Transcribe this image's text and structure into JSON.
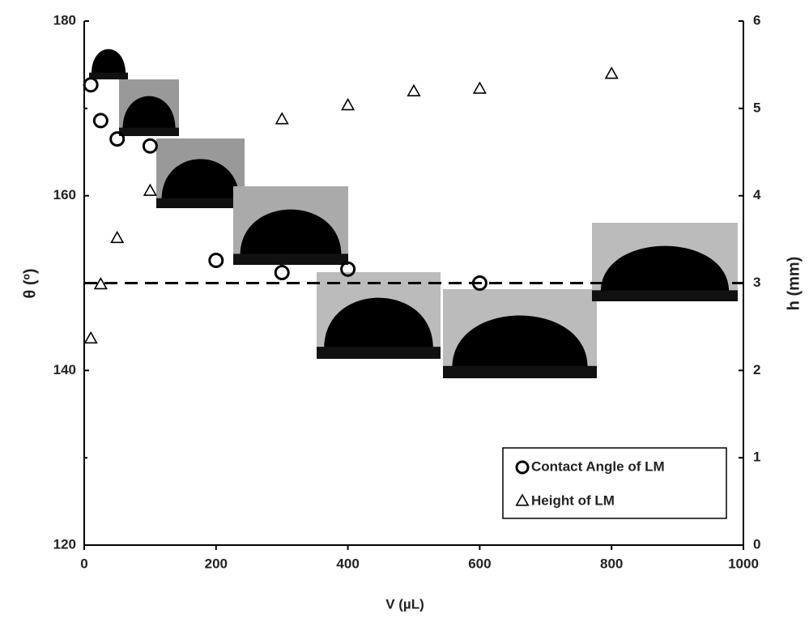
{
  "chart_data": {
    "type": "scatter",
    "x_label": "V (µL)",
    "y_label": "θ (º)",
    "y2_label": "h (mm)",
    "xlim": [
      0,
      1000
    ],
    "xticks": [
      0,
      200,
      400,
      600,
      800,
      1000
    ],
    "ylim": [
      120,
      180
    ],
    "yticks": [
      120,
      140,
      160,
      180
    ],
    "y_minor_ticks": [
      130,
      150,
      170
    ],
    "y2lim": [
      0,
      6
    ],
    "y2ticks": [
      0,
      1,
      2,
      3,
      4,
      5,
      6
    ],
    "reference_line": 150,
    "legend": "lower right",
    "series": [
      {
        "name": "Contact Angle of LM",
        "marker": "circle",
        "color": "#000000",
        "x": [
          10,
          25,
          50,
          100,
          200,
          300,
          400,
          600
        ],
        "values": [
          172.7,
          168.6,
          166.5,
          165.7,
          152.6,
          151.2,
          151.6,
          150.0
        ]
      },
      {
        "name": "Height of LM",
        "marker": "triangle",
        "color": "#000000",
        "axis": "y2",
        "x": [
          10,
          25,
          50,
          100,
          300,
          400,
          500,
          600,
          800
        ],
        "values": [
          2.36,
          2.98,
          3.51,
          4.05,
          4.87,
          5.03,
          5.19,
          5.22,
          5.39
        ]
      }
    ]
  }
}
